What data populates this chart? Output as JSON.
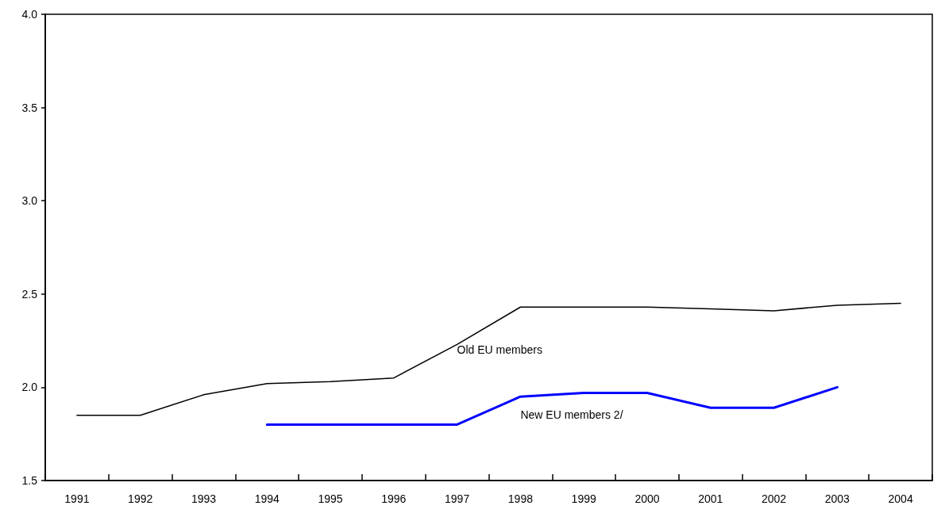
{
  "chart_data": {
    "type": "line",
    "categories": [
      "1991",
      "1992",
      "1993",
      "1994",
      "1995",
      "1996",
      "1997",
      "1998",
      "1999",
      "2000",
      "2001",
      "2002",
      "2003",
      "2004"
    ],
    "series": [
      {
        "name": "Old EU members",
        "color": "#000000",
        "values": [
          1.85,
          1.85,
          1.96,
          2.02,
          2.03,
          2.05,
          2.23,
          2.43,
          2.43,
          2.43,
          2.42,
          2.41,
          2.44,
          2.45
        ]
      },
      {
        "name": "New EU members 2/",
        "color": "#0000ff",
        "values": [
          null,
          null,
          null,
          1.8,
          1.8,
          1.8,
          1.8,
          1.95,
          1.97,
          1.97,
          1.89,
          1.89,
          2.0,
          null
        ]
      }
    ],
    "ylim": [
      1.5,
      4.0
    ],
    "yticks": [
      1.5,
      {
        "value": 2.0,
        "label": "2.0"
      },
      2.5,
      {
        "value": 3.0,
        "label": "3.0"
      },
      3.5,
      {
        "value": 4.0,
        "label": "4.0"
      }
    ],
    "grid": false,
    "legend": false,
    "marker": "none",
    "line_style": "solid"
  }
}
